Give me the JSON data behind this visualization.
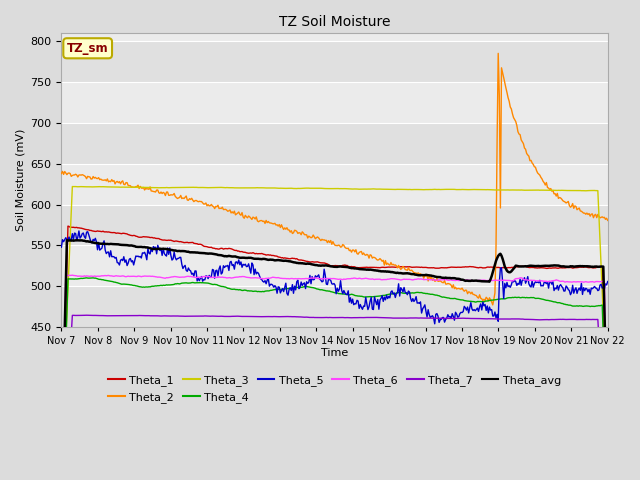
{
  "title": "TZ Soil Moisture",
  "ylabel": "Soil Moisture (mV)",
  "xlabel": "Time",
  "ylim": [
    450,
    810
  ],
  "yticks": [
    450,
    500,
    550,
    600,
    650,
    700,
    750,
    800
  ],
  "x_tick_labels": [
    "Nov 7",
    "Nov 8",
    "Nov 9",
    "Nov 10",
    "Nov 11",
    "Nov 12",
    "Nov 13",
    "Nov 14",
    "Nov 15",
    "Nov 16",
    "Nov 17",
    "Nov 18",
    "Nov 19",
    "Nov 20",
    "Nov 21",
    "Nov 22"
  ],
  "background_color": "#dcdcdc",
  "plot_bg_color": "#ebebeb",
  "grid_color": "#ffffff",
  "colors": {
    "Theta_1": "#cc0000",
    "Theta_2": "#ff8800",
    "Theta_3": "#cccc00",
    "Theta_4": "#00aa00",
    "Theta_5": "#0000cc",
    "Theta_6": "#ff44ff",
    "Theta_7": "#8800cc",
    "Theta_avg": "#000000"
  },
  "annotation_box": {
    "text": "TZ_sm",
    "text_color": "#880000",
    "bg_color": "#ffffcc",
    "border_color": "#bbaa00"
  },
  "spike_day": 12.0,
  "n_points": 500
}
